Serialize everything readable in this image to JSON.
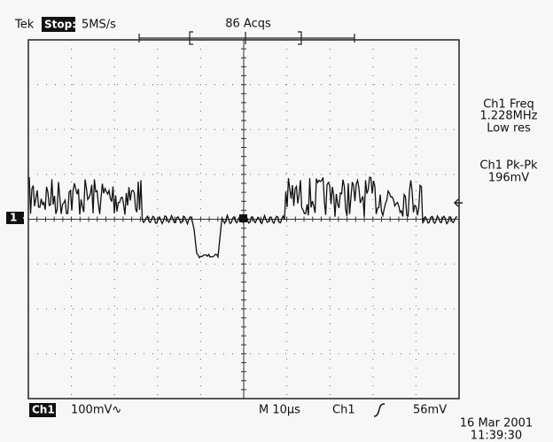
{
  "header": {
    "brand": "Tek",
    "state": "Stop:",
    "sample_rate": "5MS/s",
    "acquisitions": "86 Acqs"
  },
  "ground_marker": "1",
  "measurements": [
    {
      "label": "Ch1 Freq",
      "value": "1.228MHz",
      "note": "Low res"
    },
    {
      "label": "Ch1 Pk-Pk",
      "value": "196mV"
    }
  ],
  "footer": {
    "channel": "Ch1",
    "scale": "100mV∿",
    "timebase": "M 10µs",
    "trigger_source": "Ch1",
    "trigger_level": "56mV"
  },
  "timestamp": {
    "date": "16 Mar 2001",
    "time": "11:39:30"
  }
}
